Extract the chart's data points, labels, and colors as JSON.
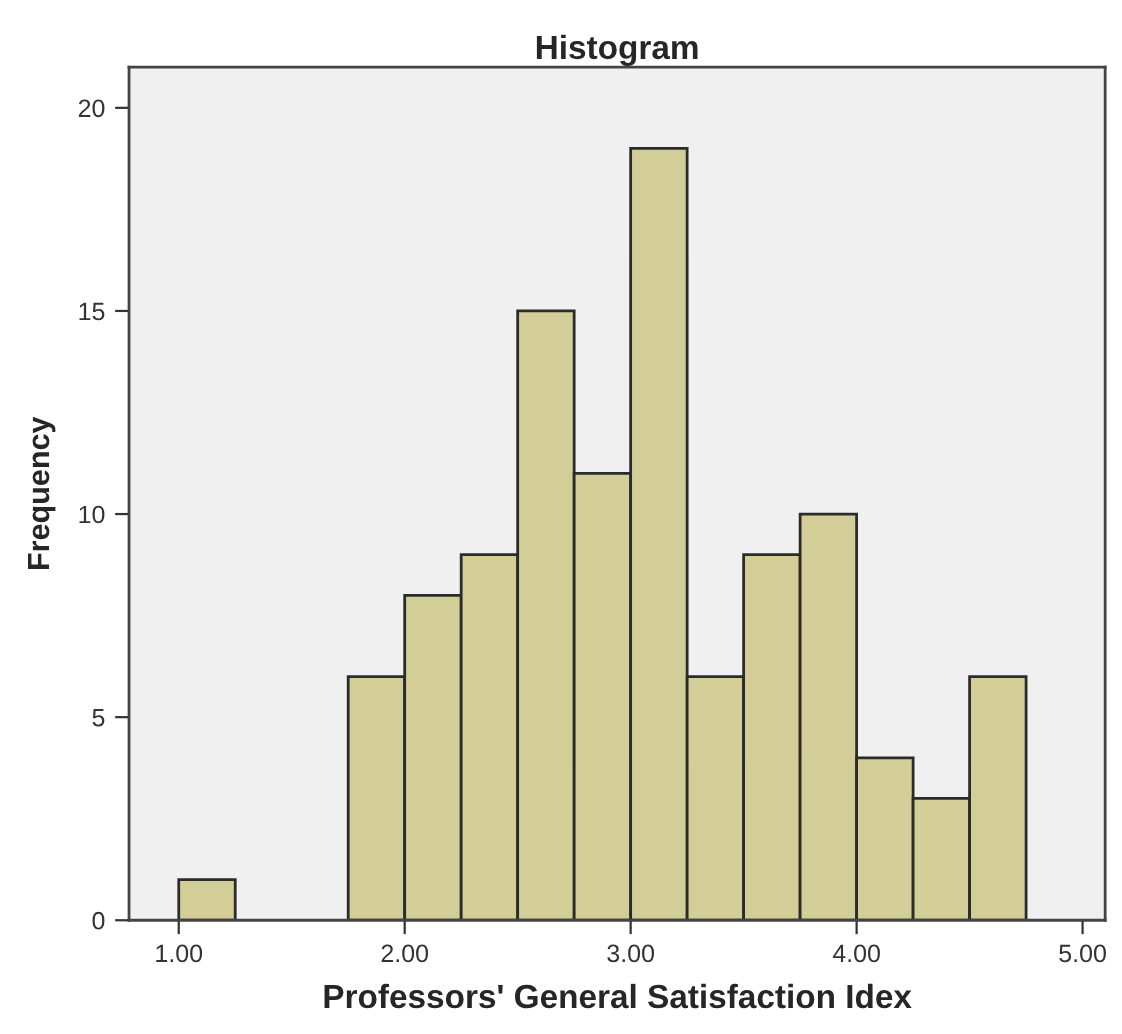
{
  "chart_data": {
    "type": "histogram",
    "title": "Histogram",
    "xlabel": "Professors' General Satisfaction Idex",
    "ylabel": "Frequency",
    "bins": [
      1.0,
      1.25,
      1.5,
      1.75,
      2.0,
      2.25,
      2.5,
      2.75,
      3.0,
      3.25,
      3.5,
      3.75,
      4.0,
      4.25,
      4.5,
      4.75
    ],
    "values": [
      1,
      0,
      0,
      6,
      8,
      9,
      15,
      11,
      19,
      6,
      9,
      10,
      4,
      3,
      6
    ],
    "color": "#d3ce97",
    "xlim": [
      0.78,
      5.1
    ],
    "xticks": [
      {
        "value": 1,
        "label": "1.00"
      },
      {
        "value": 2,
        "label": "2.00"
      },
      {
        "value": 3,
        "label": "3.00"
      },
      {
        "value": 4,
        "label": "4.00"
      },
      {
        "value": 5,
        "label": "5.00"
      }
    ],
    "ylim": [
      0,
      21
    ],
    "yticks": [
      0,
      5,
      10,
      15,
      20
    ],
    "grid": false
  }
}
